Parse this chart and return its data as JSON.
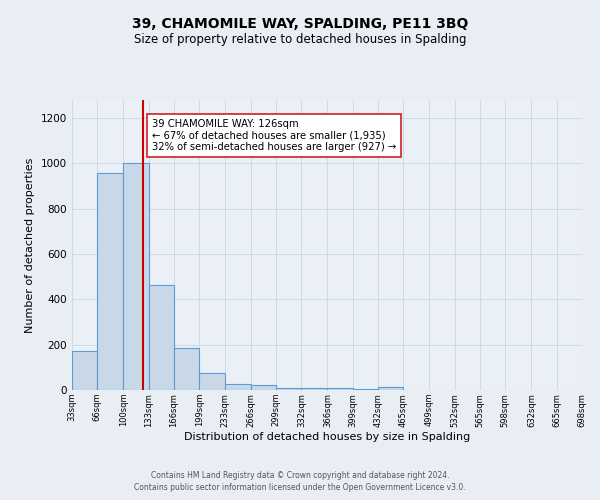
{
  "title": "39, CHAMOMILE WAY, SPALDING, PE11 3BQ",
  "subtitle": "Size of property relative to detached houses in Spalding",
  "xlabel": "Distribution of detached houses by size in Spalding",
  "ylabel": "Number of detached properties",
  "bar_edges": [
    33,
    66,
    100,
    133,
    166,
    199,
    233,
    266,
    299,
    332,
    366,
    399,
    432,
    465,
    499,
    532,
    565,
    598,
    632,
    665,
    698
  ],
  "bar_heights": [
    170,
    960,
    1000,
    465,
    185,
    75,
    25,
    20,
    10,
    10,
    8,
    5,
    12,
    0,
    0,
    0,
    0,
    0,
    0,
    0
  ],
  "bar_color": "#c8d8e8",
  "bar_edge_color": "#5b9bd5",
  "bar_linewidth": 0.8,
  "vline_x": 126,
  "vline_color": "#cc0000",
  "vline_linewidth": 1.5,
  "annotation_text": "39 CHAMOMILE WAY: 126sqm\n← 67% of detached houses are smaller (1,935)\n32% of semi-detached houses are larger (927) →",
  "ylim": [
    0,
    1280
  ],
  "yticks": [
    0,
    200,
    400,
    600,
    800,
    1000,
    1200
  ],
  "bg_color": "#e8eef4",
  "plot_bg_color": "#eaf0f6",
  "grid_color": "#d0dae4",
  "footer_line1": "Contains HM Land Registry data © Crown copyright and database right 2024.",
  "footer_line2": "Contains public sector information licensed under the Open Government Licence v3.0.",
  "tick_labels": [
    "33sqm",
    "66sqm",
    "100sqm",
    "133sqm",
    "166sqm",
    "199sqm",
    "233sqm",
    "266sqm",
    "299sqm",
    "332sqm",
    "366sqm",
    "399sqm",
    "432sqm",
    "465sqm",
    "499sqm",
    "532sqm",
    "565sqm",
    "598sqm",
    "632sqm",
    "665sqm",
    "698sqm"
  ]
}
